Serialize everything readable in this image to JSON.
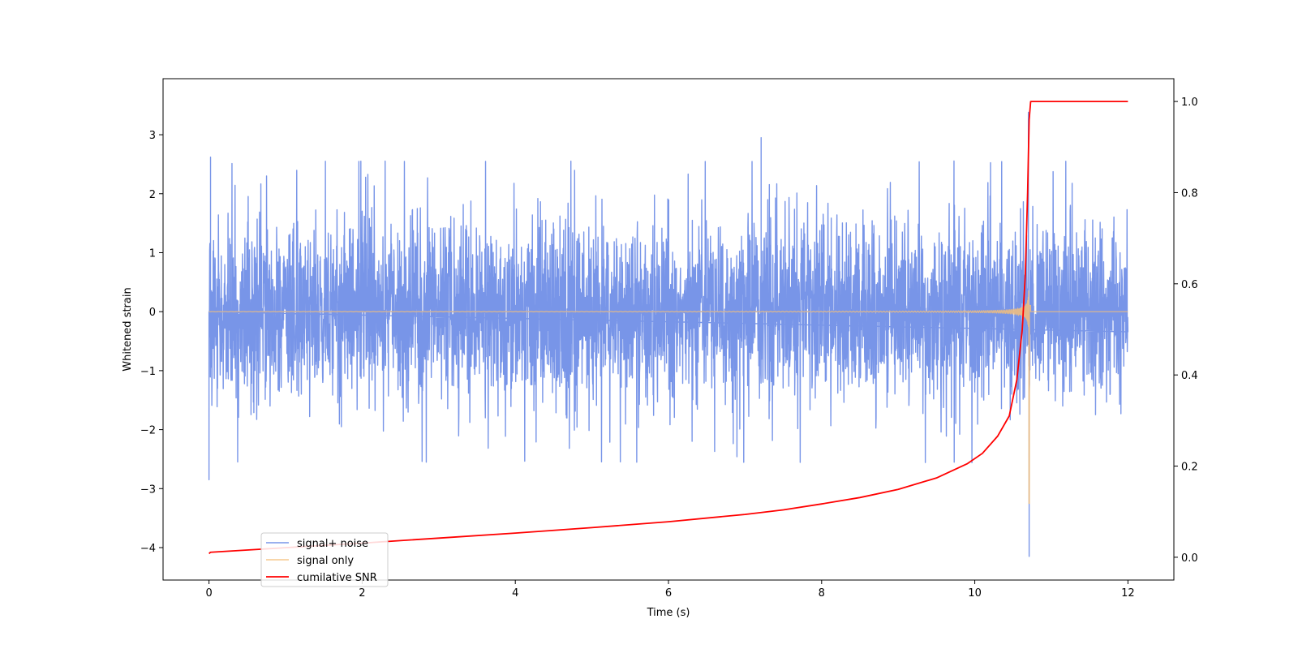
{
  "chart_data": {
    "type": "line",
    "title": "",
    "xlabel": "Time (s)",
    "ylabel": "Whitened strain",
    "y2label": "",
    "xlim": [
      -0.6,
      12.6
    ],
    "ylim": [
      -4.55,
      3.95
    ],
    "y2lim": [
      -0.05,
      1.05
    ],
    "x_ticks": [
      0,
      2,
      4,
      6,
      8,
      10,
      12
    ],
    "x_tick_labels": [
      "0",
      "2",
      "4",
      "6",
      "8",
      "10",
      "12"
    ],
    "y_ticks": [
      3,
      2,
      1,
      0,
      -1,
      -2,
      -3,
      -4
    ],
    "y_tick_labels": [
      "3",
      "2",
      "1",
      "0",
      "−1",
      "−2",
      "−3",
      "−4"
    ],
    "y2_ticks": [
      1.0,
      0.8,
      0.6,
      0.4,
      0.2,
      0.0
    ],
    "y2_tick_labels": [
      "1.0",
      "0.8",
      "0.6",
      "0.4",
      "0.2",
      "0.0"
    ],
    "grid": false,
    "legend_position": "lower-left",
    "series": [
      {
        "name": "signal+ noise",
        "color": "#7895e8",
        "axis": "left",
        "x_range": [
          0,
          12
        ],
        "noise_std": 0.75,
        "extremes": [
          {
            "x": 0.0,
            "y": -2.85
          },
          {
            "x": 0.02,
            "y": 2.62
          },
          {
            "x": 7.21,
            "y": 2.95
          },
          {
            "x": 10.7,
            "y": 3.38
          },
          {
            "x": 10.71,
            "y": -4.15
          }
        ]
      },
      {
        "name": "signal only",
        "color": "#f5c07a",
        "axis": "left",
        "x_range": [
          0,
          12
        ],
        "merger_time": 10.71,
        "peak_amplitude": 1.25,
        "final_min": -3.25
      },
      {
        "name": "cumilative SNR",
        "color": "#ff0000",
        "axis": "right",
        "points": [
          [
            0.0,
            0.008
          ],
          [
            0.02,
            0.011
          ],
          [
            1.0,
            0.021
          ],
          [
            2.0,
            0.031
          ],
          [
            3.0,
            0.042
          ],
          [
            4.0,
            0.053
          ],
          [
            5.0,
            0.065
          ],
          [
            6.0,
            0.078
          ],
          [
            7.0,
            0.094
          ],
          [
            7.5,
            0.104
          ],
          [
            8.0,
            0.117
          ],
          [
            8.5,
            0.131
          ],
          [
            9.0,
            0.149
          ],
          [
            9.5,
            0.174
          ],
          [
            9.9,
            0.205
          ],
          [
            10.1,
            0.228
          ],
          [
            10.3,
            0.266
          ],
          [
            10.45,
            0.31
          ],
          [
            10.55,
            0.39
          ],
          [
            10.62,
            0.5
          ],
          [
            10.66,
            0.62
          ],
          [
            10.69,
            0.8
          ],
          [
            10.71,
            0.96
          ],
          [
            10.73,
            1.0
          ],
          [
            12.0,
            1.0
          ]
        ]
      }
    ]
  }
}
